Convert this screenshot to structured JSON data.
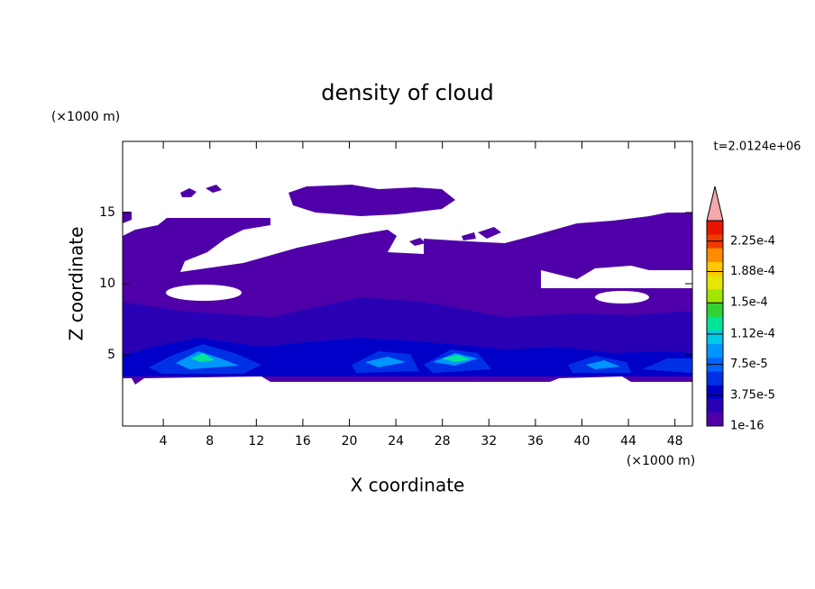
{
  "chart_data": {
    "type": "contour",
    "title": "density of cloud",
    "x_label": "X coordinate",
    "y_label": "Z coordinate",
    "x_unit": "(×1000 m)",
    "y_unit": "(×1000 m)",
    "annotation": "t=2.0124e+06",
    "xlim": [
      0.5,
      49.5
    ],
    "xticks": [
      4,
      8,
      12,
      16,
      20,
      24,
      28,
      32,
      36,
      40,
      44,
      48
    ],
    "ylim": [
      0,
      20
    ],
    "yticks": [
      5,
      10,
      15
    ],
    "colorbar": {
      "lim": [
        0,
        0.00025
      ],
      "ticks": [
        {
          "value": 1e-16,
          "label": "1e-16"
        },
        {
          "value": 3.75e-05,
          "label": "3.75e-5"
        },
        {
          "value": 7.5e-05,
          "label": "7.5e-5"
        },
        {
          "value": 0.000112,
          "label": "1.12e-4"
        },
        {
          "value": 0.00015,
          "label": "1.5e-4"
        },
        {
          "value": 0.000188,
          "label": "1.88e-4"
        },
        {
          "value": 0.000225,
          "label": "2.25e-4"
        }
      ],
      "colors": [
        "#5000a8",
        "#2a00b4",
        "#0000c8",
        "#0030e6",
        "#0064ff",
        "#0096ff",
        "#00c8e6",
        "#00e696",
        "#32d232",
        "#a0e600",
        "#e6e600",
        "#ffc800",
        "#ff8c00",
        "#f03c00",
        "#e61400"
      ],
      "extend_color": "#f4a8a8"
    }
  }
}
